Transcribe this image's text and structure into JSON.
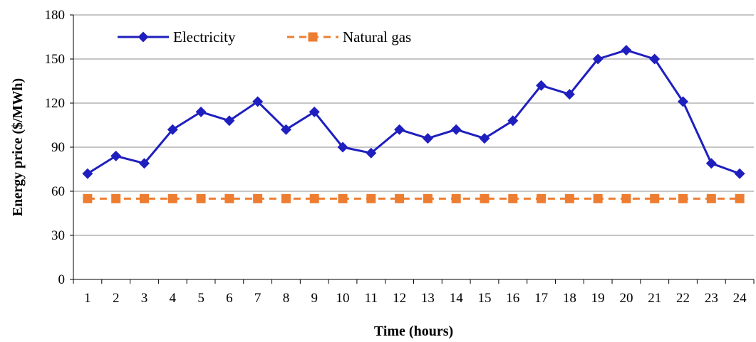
{
  "chart_data": {
    "type": "line",
    "title": "",
    "xlabel": "Time (hours)",
    "ylabel": "Energy price  ($/MWh)",
    "x": [
      "1",
      "2",
      "3",
      "4",
      "5",
      "6",
      "7",
      "8",
      "9",
      "10",
      "11",
      "12",
      "13",
      "14",
      "15",
      "16",
      "17",
      "18",
      "19",
      "20",
      "21",
      "22",
      "23",
      "24"
    ],
    "ylim": [
      0,
      180
    ],
    "yticks": [
      "0",
      "30",
      "60",
      "90",
      "120",
      "150",
      "180"
    ],
    "grid": "horizontal",
    "legend_position": "top-left",
    "series": [
      {
        "name": "Electricity",
        "color": "#1f1fbf",
        "marker": "diamond",
        "line_style": "solid",
        "values": [
          72,
          84,
          79,
          102,
          114,
          108,
          121,
          102,
          114,
          90,
          86,
          102,
          96,
          102,
          96,
          108,
          132,
          126,
          150,
          156,
          150,
          121,
          79,
          72
        ]
      },
      {
        "name": "Natural gas",
        "color": "#ed7d31",
        "marker": "square",
        "line_style": "dashed",
        "values": [
          55,
          55,
          55,
          55,
          55,
          55,
          55,
          55,
          55,
          55,
          55,
          55,
          55,
          55,
          55,
          55,
          55,
          55,
          55,
          55,
          55,
          55,
          55,
          55
        ]
      }
    ]
  }
}
